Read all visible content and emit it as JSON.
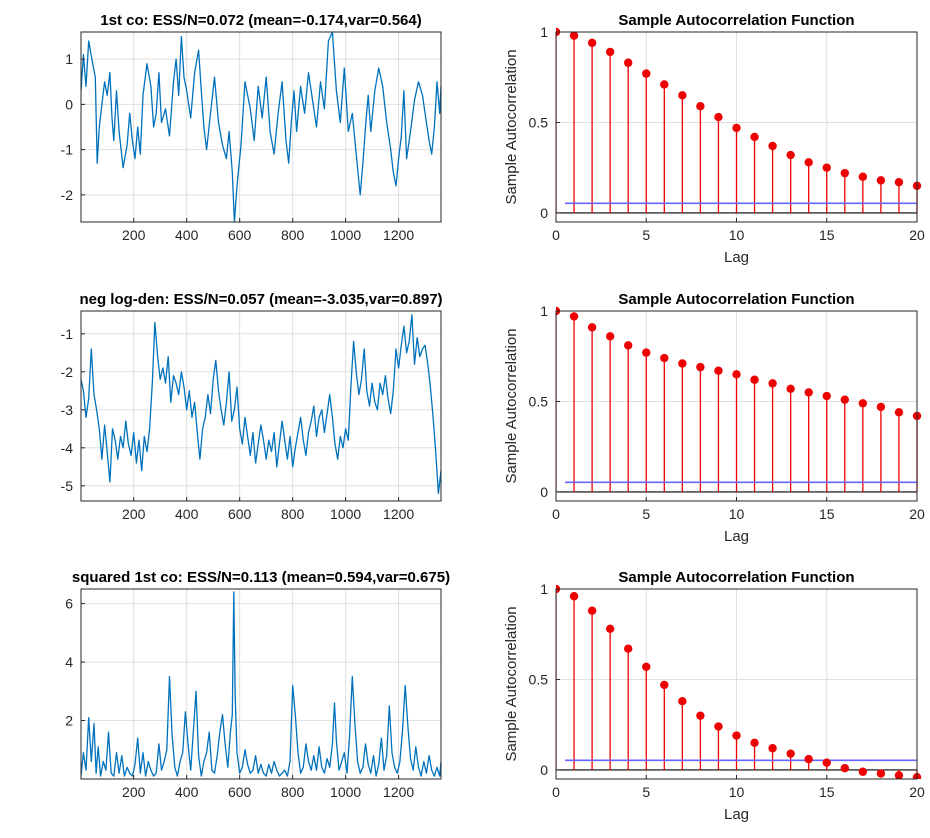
{
  "chart_data": [
    {
      "type": "line",
      "title": "1st co: ESS/N=0.072 (mean=-0.174,var=0.564)",
      "xlabel": "",
      "ylabel": "",
      "xlim": [
        1,
        1360
      ],
      "ylim": [
        -2.6,
        1.6
      ],
      "xticks": [
        200,
        400,
        600,
        800,
        1000,
        1200
      ],
      "yticks": [
        -2,
        -1,
        0,
        1
      ],
      "color": "#0072bd",
      "grid": true,
      "series": [
        {
          "x": [
            1,
            10,
            20,
            30,
            45,
            55,
            62,
            70,
            80,
            90,
            100,
            110,
            118,
            125,
            135,
            145,
            160,
            175,
            185,
            195,
            205,
            215,
            225,
            235,
            250,
            265,
            275,
            285,
            295,
            305,
            320,
            335,
            350,
            360,
            370,
            380,
            390,
            400,
            415,
            430,
            445,
            455,
            465,
            475,
            490,
            505,
            520,
            535,
            550,
            560,
            572,
            580,
            590,
            605,
            620,
            640,
            655,
            670,
            685,
            700,
            715,
            730,
            745,
            760,
            775,
            785,
            795,
            805,
            815,
            830,
            845,
            860,
            875,
            890,
            905,
            920,
            935,
            950,
            965,
            980,
            995,
            1010,
            1025,
            1040,
            1055,
            1065,
            1075,
            1085,
            1095,
            1110,
            1125,
            1140,
            1155,
            1170,
            1180,
            1190,
            1200,
            1210,
            1220,
            1230,
            1245,
            1260,
            1275,
            1290,
            1305,
            1315,
            1325,
            1335,
            1345,
            1355,
            1360
          ],
          "y": [
            0.3,
            1.1,
            0.4,
            1.4,
            0.9,
            0.6,
            -1.3,
            -0.5,
            0.0,
            0.5,
            0.2,
            0.7,
            -0.3,
            -0.8,
            0.3,
            -0.6,
            -1.4,
            -0.9,
            -0.2,
            -0.8,
            -1.2,
            -0.5,
            -1.1,
            0.2,
            0.9,
            0.4,
            -0.5,
            -0.2,
            0.7,
            -0.4,
            -0.1,
            -0.7,
            0.5,
            1.0,
            0.2,
            1.5,
            0.6,
            0.3,
            -0.3,
            0.7,
            1.2,
            0.3,
            -0.5,
            -1.0,
            -0.2,
            0.6,
            -0.4,
            -0.9,
            -1.2,
            -0.6,
            -1.5,
            -2.6,
            -1.8,
            -0.9,
            0.5,
            -0.1,
            -0.8,
            0.4,
            -0.3,
            0.6,
            -0.6,
            -1.1,
            -0.2,
            0.5,
            -0.8,
            -1.3,
            -0.4,
            0.3,
            -0.6,
            0.4,
            -0.2,
            0.7,
            0.1,
            -0.5,
            0.5,
            -0.1,
            1.4,
            1.6,
            0.3,
            -0.4,
            0.8,
            -0.6,
            -0.2,
            -1.1,
            -2.0,
            -1.3,
            -0.5,
            0.2,
            -0.6,
            0.3,
            0.8,
            0.4,
            -0.4,
            -1.0,
            -1.5,
            -1.8,
            -1.2,
            -0.7,
            0.3,
            -1.2,
            -0.6,
            0.1,
            0.5,
            0.2,
            -0.4,
            -0.8,
            -1.1,
            -0.5,
            0.5,
            -0.2,
            0.4
          ]
        }
      ]
    },
    {
      "type": "bar",
      "title": "Sample Autocorrelation Function",
      "xlabel": "Lag",
      "ylabel": "Sample Autocorrelation",
      "xlim": [
        0,
        20
      ],
      "ylim": [
        -0.05,
        1.0
      ],
      "xticks": [
        0,
        5,
        10,
        15,
        20
      ],
      "yticks": [
        0,
        0.5,
        1
      ],
      "x": [
        0,
        1,
        2,
        3,
        4,
        5,
        6,
        7,
        8,
        9,
        10,
        11,
        12,
        13,
        14,
        15,
        16,
        17,
        18,
        19,
        20
      ],
      "values": [
        1.0,
        0.98,
        0.94,
        0.89,
        0.83,
        0.77,
        0.71,
        0.65,
        0.59,
        0.53,
        0.47,
        0.42,
        0.37,
        0.32,
        0.28,
        0.25,
        0.22,
        0.2,
        0.18,
        0.17,
        0.15
      ],
      "bounds": [
        0.053,
        -0.053
      ],
      "color": "#ee0000",
      "bound_color": "#6666ff",
      "grid": true
    },
    {
      "type": "line",
      "title": "neg log-den: ESS/N=0.057 (mean=-3.035,var=0.897)",
      "xlabel": "",
      "ylabel": "",
      "xlim": [
        1,
        1360
      ],
      "ylim": [
        -5.4,
        -0.4
      ],
      "xticks": [
        200,
        400,
        600,
        800,
        1000,
        1200
      ],
      "yticks": [
        -5,
        -4,
        -3,
        -2,
        -1
      ],
      "color": "#0072bd",
      "grid": true,
      "series": [
        {
          "x": [
            1,
            10,
            20,
            30,
            40,
            50,
            60,
            70,
            80,
            90,
            100,
            110,
            120,
            130,
            140,
            150,
            160,
            170,
            180,
            190,
            200,
            210,
            220,
            230,
            240,
            250,
            260,
            270,
            280,
            290,
            300,
            310,
            320,
            330,
            340,
            350,
            360,
            370,
            380,
            390,
            400,
            410,
            420,
            430,
            440,
            450,
            460,
            470,
            480,
            490,
            500,
            510,
            520,
            530,
            540,
            550,
            560,
            570,
            580,
            590,
            600,
            610,
            620,
            630,
            640,
            650,
            660,
            670,
            680,
            690,
            700,
            710,
            720,
            730,
            740,
            750,
            760,
            770,
            780,
            790,
            800,
            810,
            820,
            830,
            840,
            850,
            860,
            870,
            880,
            890,
            900,
            910,
            920,
            930,
            940,
            950,
            960,
            970,
            980,
            990,
            1000,
            1010,
            1020,
            1030,
            1040,
            1050,
            1060,
            1070,
            1080,
            1090,
            1100,
            1110,
            1120,
            1130,
            1140,
            1150,
            1160,
            1170,
            1180,
            1190,
            1200,
            1210,
            1220,
            1230,
            1240,
            1250,
            1260,
            1270,
            1280,
            1290,
            1300,
            1310,
            1320,
            1330,
            1340,
            1350,
            1360
          ],
          "y": [
            -2.2,
            -2.5,
            -3.2,
            -2.7,
            -1.4,
            -2.6,
            -3.0,
            -3.5,
            -4.3,
            -3.4,
            -4.1,
            -4.9,
            -3.5,
            -3.8,
            -4.3,
            -3.7,
            -4.0,
            -3.3,
            -3.9,
            -4.2,
            -3.6,
            -4.4,
            -3.8,
            -4.6,
            -3.7,
            -4.1,
            -3.5,
            -2.3,
            -0.7,
            -1.6,
            -2.2,
            -1.9,
            -2.3,
            -1.6,
            -2.8,
            -2.1,
            -2.3,
            -2.6,
            -2.0,
            -2.4,
            -3.0,
            -2.5,
            -3.2,
            -2.8,
            -3.6,
            -4.3,
            -3.5,
            -3.2,
            -2.6,
            -3.1,
            -2.2,
            -1.7,
            -2.5,
            -3.0,
            -3.4,
            -2.8,
            -2.0,
            -3.3,
            -3.0,
            -2.4,
            -3.5,
            -3.9,
            -3.2,
            -3.7,
            -4.2,
            -3.6,
            -4.4,
            -3.9,
            -3.4,
            -3.8,
            -4.3,
            -3.8,
            -4.1,
            -3.6,
            -4.5,
            -3.9,
            -3.3,
            -3.8,
            -4.3,
            -3.7,
            -4.5,
            -4.0,
            -3.6,
            -3.2,
            -3.8,
            -4.2,
            -3.6,
            -3.3,
            -2.9,
            -3.7,
            -3.2,
            -3.0,
            -3.6,
            -3.1,
            -2.6,
            -3.2,
            -3.9,
            -4.3,
            -3.7,
            -4.0,
            -3.5,
            -3.8,
            -2.4,
            -1.2,
            -2.0,
            -2.6,
            -2.2,
            -1.4,
            -2.5,
            -2.9,
            -2.3,
            -2.8,
            -3.0,
            -2.3,
            -2.6,
            -2.1,
            -2.7,
            -3.1,
            -2.5,
            -1.4,
            -1.9,
            -1.3,
            -0.8,
            -1.5,
            -1.2,
            -0.5,
            -1.8,
            -1.1,
            -1.6,
            -1.4,
            -1.3,
            -1.8,
            -2.4,
            -3.2,
            -4.1,
            -5.2,
            -4.6
          ]
        }
      ]
    },
    {
      "type": "bar",
      "title": "Sample Autocorrelation Function",
      "xlabel": "Lag",
      "ylabel": "Sample Autocorrelation",
      "xlim": [
        0,
        20
      ],
      "ylim": [
        -0.05,
        1.0
      ],
      "xticks": [
        0,
        5,
        10,
        15,
        20
      ],
      "yticks": [
        0,
        0.5,
        1
      ],
      "x": [
        0,
        1,
        2,
        3,
        4,
        5,
        6,
        7,
        8,
        9,
        10,
        11,
        12,
        13,
        14,
        15,
        16,
        17,
        18,
        19,
        20
      ],
      "values": [
        1.0,
        0.97,
        0.91,
        0.86,
        0.81,
        0.77,
        0.74,
        0.71,
        0.69,
        0.67,
        0.65,
        0.62,
        0.6,
        0.57,
        0.55,
        0.53,
        0.51,
        0.49,
        0.47,
        0.44,
        0.42
      ],
      "bounds": [
        0.053,
        -0.053
      ],
      "color": "#ee0000",
      "bound_color": "#6666ff",
      "grid": true
    },
    {
      "type": "line",
      "title": "squared 1st co: ESS/N=0.113 (mean=0.594,var=0.675)",
      "xlabel": "",
      "ylabel": "",
      "xlim": [
        1,
        1360
      ],
      "ylim": [
        0,
        6.5
      ],
      "xticks": [
        200,
        400,
        600,
        800,
        1000,
        1200
      ],
      "yticks": [
        2,
        4,
        6
      ],
      "color": "#0072bd",
      "grid": true,
      "series": [
        {
          "x": [
            1,
            10,
            20,
            30,
            40,
            50,
            58,
            66,
            75,
            85,
            95,
            105,
            115,
            125,
            135,
            145,
            155,
            165,
            175,
            185,
            195,
            205,
            215,
            225,
            235,
            245,
            255,
            265,
            275,
            285,
            295,
            305,
            315,
            325,
            335,
            345,
            355,
            365,
            375,
            385,
            395,
            405,
            415,
            425,
            435,
            445,
            455,
            465,
            475,
            485,
            495,
            505,
            515,
            525,
            535,
            545,
            555,
            565,
            572,
            578,
            583,
            590,
            600,
            610,
            620,
            630,
            640,
            650,
            660,
            670,
            680,
            690,
            700,
            710,
            720,
            730,
            740,
            750,
            760,
            770,
            780,
            790,
            800,
            810,
            820,
            830,
            840,
            850,
            860,
            870,
            880,
            890,
            900,
            910,
            920,
            930,
            940,
            950,
            958,
            965,
            975,
            985,
            995,
            1005,
            1015,
            1025,
            1035,
            1045,
            1055,
            1065,
            1075,
            1085,
            1095,
            1105,
            1115,
            1125,
            1135,
            1145,
            1155,
            1165,
            1175,
            1185,
            1195,
            1205,
            1215,
            1225,
            1235,
            1245,
            1255,
            1265,
            1275,
            1285,
            1295,
            1305,
            1315,
            1325,
            1335,
            1345,
            1355,
            1360
          ],
          "y": [
            0.1,
            0.9,
            0.3,
            2.1,
            0.6,
            1.9,
            0.2,
            1.1,
            0.1,
            0.6,
            0.3,
            1.6,
            0.2,
            0.1,
            0.9,
            0.2,
            0.8,
            0.1,
            0.4,
            0.2,
            0.1,
            0.5,
            1.4,
            0.2,
            0.9,
            0.1,
            0.6,
            0.3,
            0.1,
            0.2,
            1.2,
            0.3,
            0.6,
            1.0,
            3.5,
            1.5,
            0.4,
            0.1,
            0.6,
            0.9,
            2.3,
            1.2,
            0.3,
            1.6,
            3.0,
            0.8,
            0.1,
            0.6,
            0.9,
            1.6,
            0.3,
            0.2,
            0.8,
            1.6,
            2.2,
            1.2,
            0.4,
            1.6,
            2.2,
            6.4,
            2.8,
            0.9,
            0.2,
            0.4,
            1.0,
            0.5,
            0.2,
            0.3,
            0.8,
            0.2,
            0.5,
            0.2,
            0.1,
            0.5,
            0.2,
            0.6,
            0.3,
            0.1,
            0.2,
            0.3,
            0.1,
            0.6,
            3.2,
            2.2,
            0.9,
            0.2,
            0.4,
            1.2,
            0.6,
            0.3,
            0.8,
            0.3,
            1.1,
            0.4,
            0.2,
            0.7,
            0.4,
            1.2,
            2.6,
            1.3,
            0.3,
            0.6,
            0.9,
            0.2,
            1.5,
            3.5,
            1.9,
            0.6,
            0.2,
            0.4,
            1.2,
            0.5,
            0.2,
            0.8,
            0.1,
            0.5,
            1.4,
            0.3,
            0.8,
            2.5,
            0.9,
            0.4,
            0.2,
            0.6,
            1.7,
            3.2,
            1.8,
            0.7,
            0.3,
            1.1,
            0.4,
            0.1,
            0.6,
            0.2,
            0.8,
            0.3,
            0.1,
            0.4,
            0.1,
            0.6
          ]
        }
      ]
    },
    {
      "type": "bar",
      "title": "Sample Autocorrelation Function",
      "xlabel": "Lag",
      "ylabel": "Sample Autocorrelation",
      "xlim": [
        0,
        20
      ],
      "ylim": [
        -0.05,
        1.0
      ],
      "xticks": [
        0,
        5,
        10,
        15,
        20
      ],
      "yticks": [
        0,
        0.5,
        1
      ],
      "x": [
        0,
        1,
        2,
        3,
        4,
        5,
        6,
        7,
        8,
        9,
        10,
        11,
        12,
        13,
        14,
        15,
        16,
        17,
        18,
        19,
        20
      ],
      "values": [
        1.0,
        0.96,
        0.88,
        0.78,
        0.67,
        0.57,
        0.47,
        0.38,
        0.3,
        0.24,
        0.19,
        0.15,
        0.12,
        0.09,
        0.06,
        0.04,
        0.01,
        -0.01,
        -0.02,
        -0.03,
        -0.04
      ],
      "bounds": [
        0.053,
        -0.053
      ],
      "color": "#ee0000",
      "bound_color": "#6666ff",
      "grid": true
    }
  ]
}
